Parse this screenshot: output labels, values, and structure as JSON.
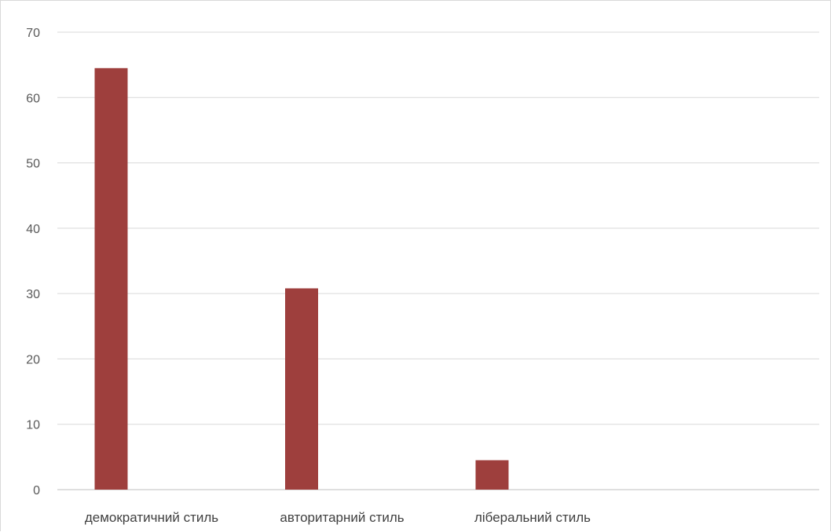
{
  "chart_data": {
    "type": "bar",
    "categories": [
      "демократичний стиль",
      "авторитарний стиль",
      "ліберальний стиль",
      ""
    ],
    "series": [
      {
        "values": [
          64.5,
          30.8,
          4.5,
          null
        ],
        "color": "#9e3f3d"
      }
    ],
    "title": "",
    "xlabel": "",
    "ylabel": "",
    "ylim": [
      0,
      70
    ],
    "yticks": [
      0,
      10,
      20,
      30,
      40,
      50,
      60,
      70
    ],
    "grid": true,
    "legend": "none"
  }
}
